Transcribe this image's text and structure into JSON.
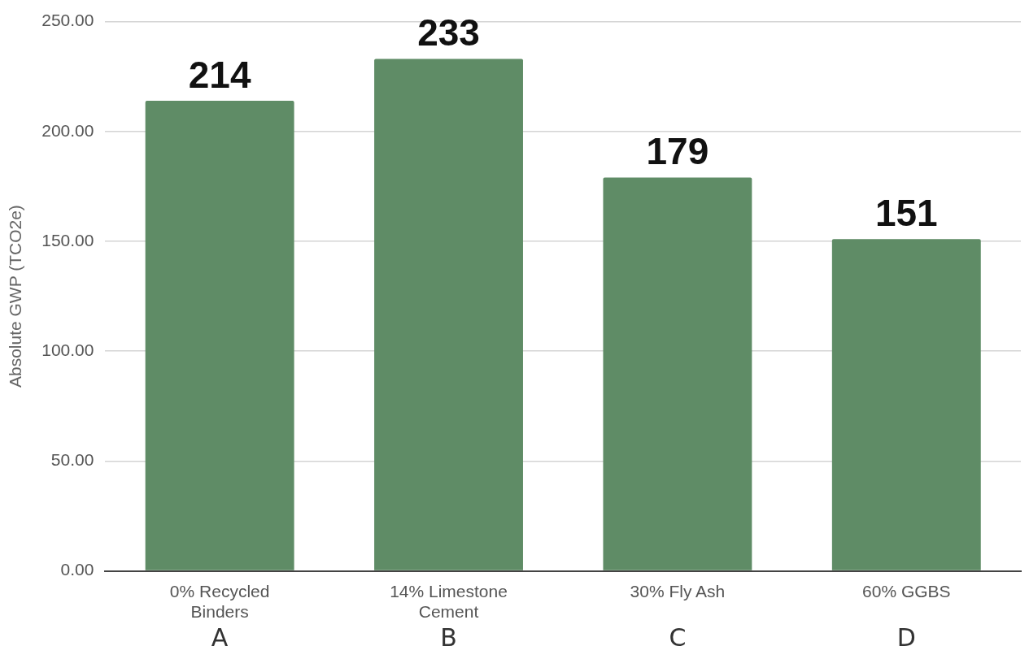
{
  "chart_data": {
    "type": "bar",
    "ylabel": "Absolute GWP (TCO2e)",
    "categories": [
      "0% Recycled Binders",
      "14% Limestone Cement",
      "30% Fly Ash",
      "60% GGBS"
    ],
    "values": [
      214,
      233,
      179,
      151
    ],
    "color": "#5f8c66",
    "ylim": [
      0,
      250
    ],
    "yticks": [
      {
        "value": 0,
        "label": "0.00"
      },
      {
        "value": 50,
        "label": "50.00"
      },
      {
        "value": 100,
        "label": "100.00"
      },
      {
        "value": 150,
        "label": "150.00"
      },
      {
        "value": 200,
        "label": "200.00"
      },
      {
        "value": 250,
        "label": "250.00"
      }
    ],
    "grid": "y",
    "legend": false,
    "data_labels": true,
    "annotations": [
      "A",
      "B",
      "C",
      "D"
    ]
  }
}
